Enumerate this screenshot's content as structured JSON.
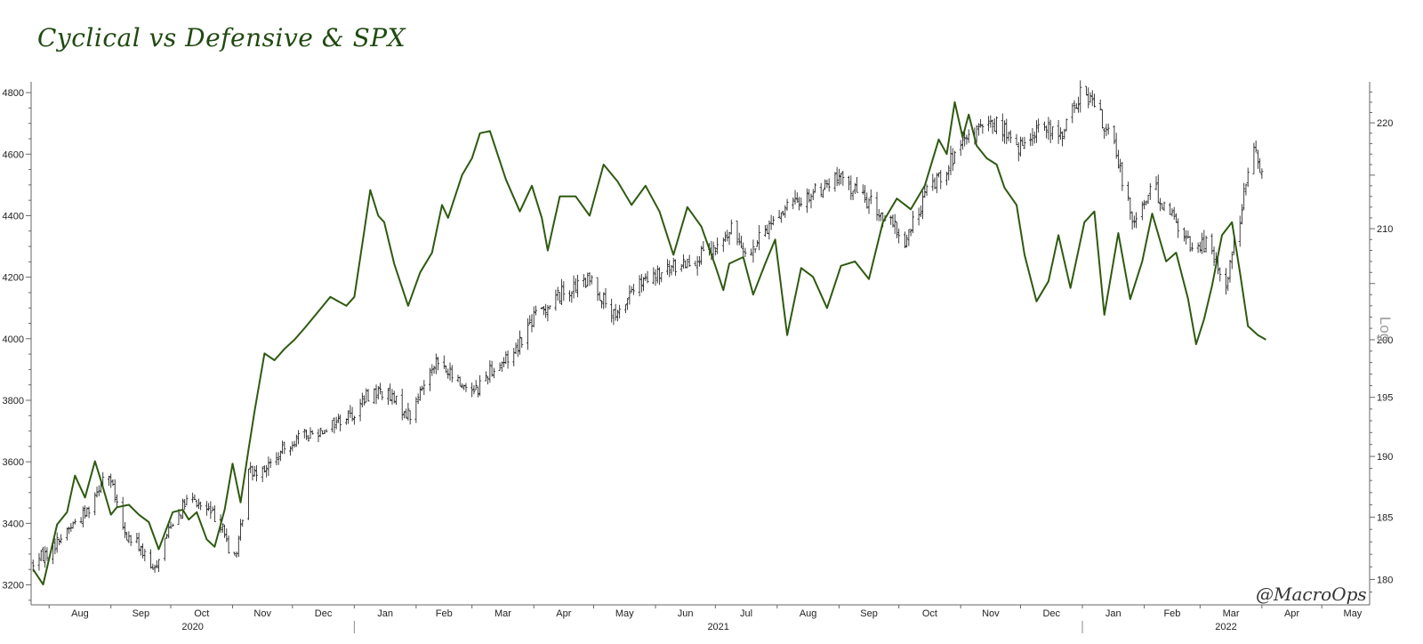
{
  "chart_data": {
    "type": "line",
    "title": "Cyclical vs Defensive & SPX",
    "watermark": "@MacroOps",
    "right_axis_scale_label": "Log",
    "colors": {
      "cyclical_line": "#2e5a10",
      "spx_bars": "#111111",
      "title": "#1f4a10"
    },
    "x_months": [
      "Aug",
      "Sep",
      "Oct",
      "Nov",
      "Dec",
      "Jan",
      "Feb",
      "Mar",
      "Apr",
      "May",
      "Jun",
      "Jul",
      "Aug",
      "Sep",
      "Oct",
      "Nov",
      "Dec",
      "Jan",
      "Feb",
      "Mar",
      "Apr",
      "May"
    ],
    "x_years": [
      "2020",
      "2021",
      "2022"
    ],
    "left_axis": {
      "ticks": [
        3200,
        3400,
        3600,
        3800,
        4000,
        4200,
        4400,
        4600,
        4800
      ],
      "range": [
        3135,
        4835
      ]
    },
    "right_axis": {
      "ticks": [
        180,
        185,
        190,
        195,
        200,
        210,
        220
      ],
      "range": [
        178,
        224
      ],
      "scale": "log"
    },
    "series": [
      {
        "axis": "right",
        "style": "line",
        "x": [
          "2020-07-24",
          "2020-07-29",
          "2020-08-05",
          "2020-08-10",
          "2020-08-14",
          "2020-08-19",
          "2020-08-24",
          "2020-08-27",
          "2020-09-01",
          "2020-09-04",
          "2020-09-10",
          "2020-09-15",
          "2020-09-20",
          "2020-09-25",
          "2020-10-02",
          "2020-10-07",
          "2020-10-10",
          "2020-10-14",
          "2020-10-19",
          "2020-10-23",
          "2020-10-28",
          "2020-11-01",
          "2020-11-05",
          "2020-11-09",
          "2020-11-12",
          "2020-11-17",
          "2020-11-22",
          "2020-11-27",
          "2020-12-02",
          "2020-12-07",
          "2020-12-14",
          "2020-12-20",
          "2020-12-28",
          "2021-01-01",
          "2021-01-06",
          "2021-01-09",
          "2021-01-13",
          "2021-01-16",
          "2021-01-21",
          "2021-01-28",
          "2021-02-03",
          "2021-02-09",
          "2021-02-14",
          "2021-02-17",
          "2021-02-24",
          "2021-03-01",
          "2021-03-05",
          "2021-03-10",
          "2021-03-18",
          "2021-03-25",
          "2021-03-31",
          "2021-04-05",
          "2021-04-08",
          "2021-04-14",
          "2021-04-22",
          "2021-04-29",
          "2021-05-06",
          "2021-05-13",
          "2021-05-20",
          "2021-05-27",
          "2021-06-03",
          "2021-06-10",
          "2021-06-17",
          "2021-06-24",
          "2021-07-01",
          "2021-07-05",
          "2021-07-08",
          "2021-07-15",
          "2021-07-20",
          "2021-07-26",
          "2021-07-31",
          "2021-08-06",
          "2021-08-13",
          "2021-08-19",
          "2021-08-26",
          "2021-09-02",
          "2021-09-09",
          "2021-09-16",
          "2021-09-23",
          "2021-09-30",
          "2021-10-07",
          "2021-10-14",
          "2021-10-21",
          "2021-10-25",
          "2021-10-29",
          "2021-11-02",
          "2021-11-05",
          "2021-11-09",
          "2021-11-14",
          "2021-11-19",
          "2021-11-23",
          "2021-11-29",
          "2021-12-03",
          "2021-12-09",
          "2021-12-15",
          "2021-12-20",
          "2021-12-26",
          "2022-01-02",
          "2022-01-07",
          "2022-01-12",
          "2022-01-19",
          "2022-01-25",
          "2022-01-31",
          "2022-02-05",
          "2022-02-12",
          "2022-02-17",
          "2022-02-23",
          "2022-02-27",
          "2022-03-03",
          "2022-03-07",
          "2022-03-12",
          "2022-03-17",
          "2022-03-21",
          "2022-03-25",
          "2022-03-30",
          "2022-04-03"
        ],
        "values": [
          180.8,
          179.6,
          184.4,
          185.4,
          188.4,
          186.6,
          189.6,
          188.0,
          185.2,
          185.8,
          186.0,
          185.2,
          184.6,
          182.4,
          185.4,
          185.6,
          184.8,
          185.4,
          183.2,
          182.6,
          185.6,
          189.4,
          186.2,
          190.6,
          193.8,
          198.8,
          198.2,
          199.2,
          200.0,
          201.0,
          202.5,
          203.8,
          203.0,
          203.8,
          209.8,
          213.6,
          211.2,
          210.6,
          206.8,
          203.0,
          206.0,
          207.8,
          212.2,
          211.0,
          215.0,
          216.6,
          219.0,
          219.2,
          214.6,
          211.6,
          214.0,
          211.0,
          208.0,
          213.0,
          213.0,
          211.2,
          216.0,
          214.4,
          212.2,
          214.0,
          211.6,
          207.6,
          212.0,
          210.2,
          206.6,
          204.4,
          206.8,
          207.4,
          204.0,
          206.8,
          209.0,
          200.4,
          206.4,
          205.6,
          202.8,
          206.6,
          207.0,
          205.4,
          210.6,
          212.8,
          211.8,
          214.0,
          218.4,
          217.0,
          222.0,
          218.6,
          220.8,
          217.8,
          216.6,
          216.0,
          213.8,
          212.2,
          207.6,
          203.4,
          205.2,
          209.4,
          204.6,
          210.6,
          211.6,
          202.2,
          209.6,
          203.6,
          207.0,
          211.4,
          207.0,
          207.8,
          203.6,
          199.6,
          201.8,
          204.8,
          209.4,
          210.6,
          206.0,
          201.2,
          200.4,
          200.0
        ]
      },
      {
        "axis": "left",
        "style": "bars",
        "x": [
          "2020-07-24",
          "2020-08-01",
          "2020-08-10",
          "2020-08-20",
          "2020-08-30",
          "2020-09-08",
          "2020-09-15",
          "2020-09-22",
          "2020-10-01",
          "2020-10-10",
          "2020-10-20",
          "2020-10-27",
          "2020-10-31",
          "2020-11-04",
          "2020-11-09",
          "2020-11-20",
          "2020-12-01",
          "2020-12-10",
          "2020-12-20",
          "2021-01-01",
          "2021-01-08",
          "2021-01-15",
          "2021-01-29",
          "2021-02-10",
          "2021-02-24",
          "2021-03-04",
          "2021-03-10",
          "2021-03-20",
          "2021-04-01",
          "2021-04-15",
          "2021-04-30",
          "2021-05-12",
          "2021-05-20",
          "2021-06-01",
          "2021-06-15",
          "2021-06-30",
          "2021-07-09",
          "2021-07-19",
          "2021-07-31",
          "2021-08-15",
          "2021-08-31",
          "2021-09-06",
          "2021-09-15",
          "2021-09-30",
          "2021-10-04",
          "2021-10-15",
          "2021-10-31",
          "2021-11-10",
          "2021-11-20",
          "2021-11-30",
          "2021-12-10",
          "2021-12-20",
          "2021-12-31",
          "2022-01-04",
          "2022-01-15",
          "2022-01-27",
          "2022-02-05",
          "2022-02-15",
          "2022-02-24",
          "2022-03-04",
          "2022-03-14",
          "2022-03-24",
          "2022-03-29",
          "2022-04-01"
        ],
        "values": [
          3270,
          3310,
          3380,
          3440,
          3580,
          3360,
          3330,
          3240,
          3400,
          3480,
          3440,
          3400,
          3270,
          3330,
          3570,
          3590,
          3670,
          3690,
          3720,
          3760,
          3820,
          3830,
          3750,
          3930,
          3850,
          3840,
          3900,
          3940,
          4070,
          4150,
          4190,
          4060,
          4160,
          4200,
          4250,
          4280,
          4350,
          4280,
          4400,
          4460,
          4520,
          4500,
          4450,
          4350,
          4310,
          4480,
          4610,
          4680,
          4700,
          4610,
          4700,
          4650,
          4790,
          4790,
          4660,
          4380,
          4500,
          4400,
          4300,
          4310,
          4180,
          4500,
          4620,
          4540
        ]
      }
    ]
  }
}
